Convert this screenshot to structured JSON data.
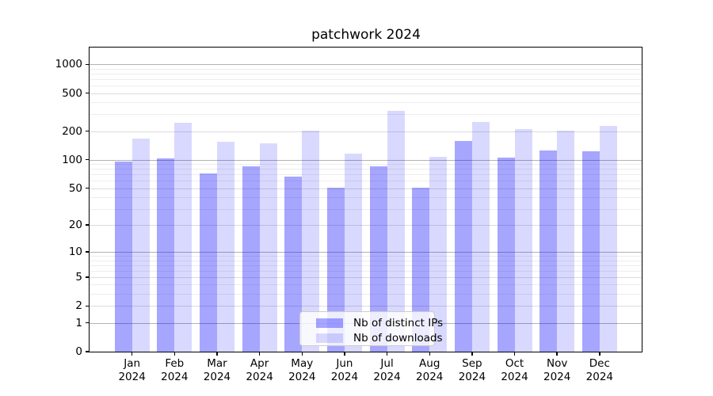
{
  "title": "patchwork 2024",
  "chart_data": {
    "type": "bar",
    "title": "patchwork 2024",
    "categories": [
      "Jan 2024",
      "Feb 2024",
      "Mar 2024",
      "Apr 2024",
      "May 2024",
      "Jun 2024",
      "Jul 2024",
      "Aug 2024",
      "Sep 2024",
      "Oct 2024",
      "Nov 2024",
      "Dec 2024"
    ],
    "series": [
      {
        "name": "Nb of distinct IPs",
        "color": "rgba(0,0,255,0.35)",
        "values": [
          96,
          103,
          72,
          86,
          66,
          51,
          86,
          51,
          157,
          105,
          124,
          122
        ]
      },
      {
        "name": "Nb of downloads",
        "color": "rgba(0,0,255,0.15)",
        "values": [
          168,
          243,
          154,
          150,
          202,
          117,
          324,
          108,
          250,
          211,
          204,
          226
        ]
      }
    ],
    "yscale": "log1p",
    "y_ticks": [
      0,
      1,
      2,
      5,
      10,
      20,
      50,
      100,
      200,
      500,
      1000
    ],
    "ylim": [
      0,
      1500
    ],
    "grid": "both",
    "legend_position": "lower center"
  }
}
